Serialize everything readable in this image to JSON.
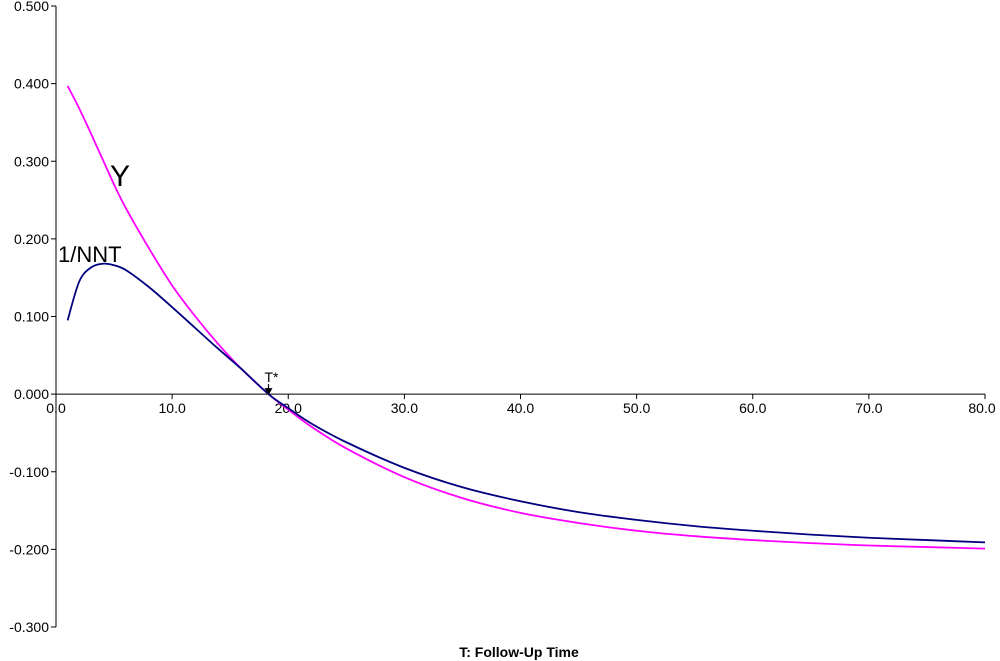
{
  "chart_data": {
    "type": "line",
    "title": "",
    "xlabel": "T:  Follow-Up Time",
    "ylabel": "",
    "xlim": [
      0,
      80
    ],
    "ylim": [
      -0.3,
      0.5
    ],
    "x_ticks": [
      "0.0",
      "10.0",
      "20.0",
      "30.0",
      "40.0",
      "50.0",
      "60.0",
      "70.0",
      "80.0"
    ],
    "y_ticks": [
      "0.500",
      "0.400",
      "0.300",
      "0.200",
      "0.100",
      "0.000",
      "-0.100",
      "-0.200",
      "-0.300"
    ],
    "grid": false,
    "series": [
      {
        "name": "Y",
        "color": "#ff00ff",
        "x": [
          1,
          2,
          3,
          4,
          5,
          6,
          8,
          10,
          12,
          14,
          16,
          18.3,
          20,
          22,
          25,
          30,
          35,
          40,
          45,
          50,
          55,
          60,
          65,
          70,
          75,
          80
        ],
        "y": [
          0.397,
          0.368,
          0.336,
          0.303,
          0.27,
          0.24,
          0.188,
          0.14,
          0.1,
          0.064,
          0.032,
          0.0,
          -0.02,
          -0.042,
          -0.07,
          -0.107,
          -0.134,
          -0.153,
          -0.166,
          -0.176,
          -0.183,
          -0.188,
          -0.192,
          -0.195,
          -0.197,
          -0.199
        ]
      },
      {
        "name": "1/NNT",
        "color": "#000080",
        "x": [
          1,
          2,
          3,
          4,
          5,
          6,
          8,
          10,
          12,
          14,
          16,
          18.3,
          20,
          22,
          25,
          30,
          35,
          40,
          45,
          50,
          55,
          60,
          65,
          70,
          75,
          80
        ],
        "y": [
          0.095,
          0.145,
          0.163,
          0.168,
          0.166,
          0.16,
          0.138,
          0.112,
          0.085,
          0.058,
          0.032,
          0.0,
          -0.018,
          -0.038,
          -0.062,
          -0.095,
          -0.12,
          -0.138,
          -0.152,
          -0.162,
          -0.17,
          -0.176,
          -0.181,
          -0.185,
          -0.188,
          -0.191
        ]
      }
    ],
    "annotations": [
      {
        "text": "T*",
        "x": 18.3,
        "y": 0.0
      }
    ]
  }
}
